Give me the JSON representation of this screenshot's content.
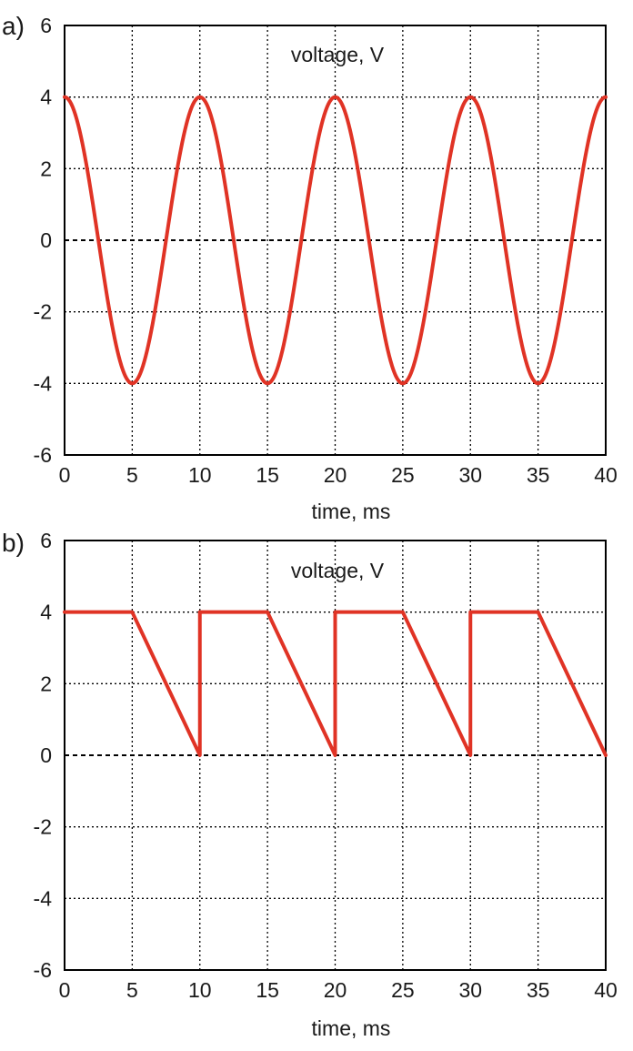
{
  "colors": {
    "series": "#e03325",
    "frame": "#000000",
    "background": "#ffffff"
  },
  "chart_data": [
    {
      "type": "line",
      "panel_label": "a)",
      "title": "voltage, V",
      "xlabel": "time, ms",
      "ylabel": "",
      "xlim": [
        0,
        40
      ],
      "ylim": [
        -6,
        6
      ],
      "x_ticks": [
        0,
        5,
        10,
        15,
        20,
        25,
        30,
        35,
        40
      ],
      "y_ticks": [
        6,
        4,
        2,
        0,
        -2,
        -4,
        -6
      ],
      "x_tick_labels": [
        "0",
        "5",
        "10",
        "15",
        "20",
        "25",
        "30",
        "35",
        "40"
      ],
      "y_tick_labels": [
        "6",
        "4",
        "2",
        "0",
        "-2",
        "-4",
        "-6"
      ],
      "grid": true,
      "series": [
        {
          "x": [
            0,
            1.25,
            2.5,
            3.75,
            5,
            6.25,
            7.5,
            8.75,
            10,
            11.25,
            12.5,
            13.75,
            15,
            16.25,
            17.5,
            18.75,
            20,
            21.25,
            22.5,
            23.75,
            25,
            26.25,
            27.5,
            28.75,
            30,
            31.25,
            32.5,
            33.75,
            35,
            36.25,
            37.5,
            38.75,
            40
          ],
          "values": [
            4,
            2.83,
            0,
            -2.83,
            -4,
            -2.83,
            0,
            2.83,
            4,
            2.83,
            0,
            -2.83,
            -4,
            -2.83,
            0,
            2.83,
            4,
            2.83,
            0,
            -2.83,
            -4,
            -2.83,
            0,
            2.83,
            4,
            2.83,
            0,
            -2.83,
            -4,
            -2.83,
            0,
            2.83,
            4
          ]
        }
      ]
    },
    {
      "type": "line",
      "panel_label": "b)",
      "title": "voltage, V",
      "xlabel": "time, ms",
      "ylabel": "",
      "xlim": [
        0,
        40
      ],
      "ylim": [
        -6,
        6
      ],
      "x_ticks": [
        0,
        5,
        10,
        15,
        20,
        25,
        30,
        35,
        40
      ],
      "y_ticks": [
        6,
        4,
        2,
        0,
        -2,
        -4,
        -6
      ],
      "x_tick_labels": [
        "0",
        "5",
        "10",
        "15",
        "20",
        "25",
        "30",
        "35",
        "40"
      ],
      "y_tick_labels": [
        "6",
        "4",
        "2",
        "0",
        "-2",
        "-4",
        "-6"
      ],
      "grid": true,
      "series": [
        {
          "x": [
            0,
            5,
            10,
            10,
            15,
            20,
            20,
            25,
            30,
            30,
            35,
            40
          ],
          "values": [
            4,
            4,
            0,
            4,
            4,
            0,
            4,
            4,
            0,
            4,
            4,
            0
          ]
        }
      ]
    }
  ]
}
